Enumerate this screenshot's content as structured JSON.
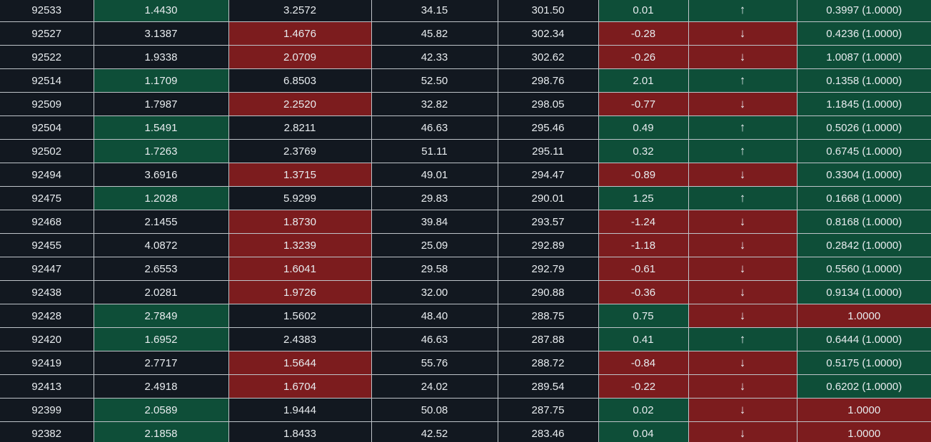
{
  "colors": {
    "background": "#121820",
    "positive": "#0e4e38",
    "negative": "#7c1c1e",
    "text": "#e8ecef",
    "grid": "#bfc4c9"
  },
  "rows": [
    {
      "id": "92533",
      "a": "1.4430",
      "a_hl": "g",
      "b": "3.2572",
      "b_hl": "",
      "c": "34.15",
      "d": "301.50",
      "e": "0.01",
      "e_hl": "g",
      "dir": "↑",
      "dir_name": "up-arrow-icon",
      "dir_hl": "g",
      "p": "0.3997 (1.0000)",
      "p_hl": "g"
    },
    {
      "id": "92527",
      "a": "3.1387",
      "a_hl": "",
      "b": "1.4676",
      "b_hl": "r",
      "c": "45.82",
      "d": "302.34",
      "e": "-0.28",
      "e_hl": "r",
      "dir": "↓",
      "dir_name": "down-arrow-icon",
      "dir_hl": "r",
      "p": "0.4236 (1.0000)",
      "p_hl": "g"
    },
    {
      "id": "92522",
      "a": "1.9338",
      "a_hl": "",
      "b": "2.0709",
      "b_hl": "r",
      "c": "42.33",
      "d": "302.62",
      "e": "-0.26",
      "e_hl": "r",
      "dir": "↓",
      "dir_name": "down-arrow-icon",
      "dir_hl": "r",
      "p": "1.0087 (1.0000)",
      "p_hl": "g"
    },
    {
      "id": "92514",
      "a": "1.1709",
      "a_hl": "g",
      "b": "6.8503",
      "b_hl": "",
      "c": "52.50",
      "d": "298.76",
      "e": "2.01",
      "e_hl": "g",
      "dir": "↑",
      "dir_name": "up-arrow-icon",
      "dir_hl": "g",
      "p": "0.1358 (1.0000)",
      "p_hl": "g"
    },
    {
      "id": "92509",
      "a": "1.7987",
      "a_hl": "",
      "b": "2.2520",
      "b_hl": "r",
      "c": "32.82",
      "d": "298.05",
      "e": "-0.77",
      "e_hl": "r",
      "dir": "↓",
      "dir_name": "down-arrow-icon",
      "dir_hl": "r",
      "p": "1.1845 (1.0000)",
      "p_hl": "g"
    },
    {
      "id": "92504",
      "a": "1.5491",
      "a_hl": "g",
      "b": "2.8211",
      "b_hl": "",
      "c": "46.63",
      "d": "295.46",
      "e": "0.49",
      "e_hl": "g",
      "dir": "↑",
      "dir_name": "up-arrow-icon",
      "dir_hl": "g",
      "p": "0.5026 (1.0000)",
      "p_hl": "g"
    },
    {
      "id": "92502",
      "a": "1.7263",
      "a_hl": "g",
      "b": "2.3769",
      "b_hl": "",
      "c": "51.11",
      "d": "295.11",
      "e": "0.32",
      "e_hl": "g",
      "dir": "↑",
      "dir_name": "up-arrow-icon",
      "dir_hl": "g",
      "p": "0.6745 (1.0000)",
      "p_hl": "g"
    },
    {
      "id": "92494",
      "a": "3.6916",
      "a_hl": "",
      "b": "1.3715",
      "b_hl": "r",
      "c": "49.01",
      "d": "294.47",
      "e": "-0.89",
      "e_hl": "r",
      "dir": "↓",
      "dir_name": "down-arrow-icon",
      "dir_hl": "r",
      "p": "0.3304 (1.0000)",
      "p_hl": "g"
    },
    {
      "id": "92475",
      "a": "1.2028",
      "a_hl": "g",
      "b": "5.9299",
      "b_hl": "",
      "c": "29.83",
      "d": "290.01",
      "e": "1.25",
      "e_hl": "g",
      "dir": "↑",
      "dir_name": "up-arrow-icon",
      "dir_hl": "g",
      "p": "0.1668 (1.0000)",
      "p_hl": "g"
    },
    {
      "id": "92468",
      "a": "2.1455",
      "a_hl": "",
      "b": "1.8730",
      "b_hl": "r",
      "c": "39.84",
      "d": "293.57",
      "e": "-1.24",
      "e_hl": "r",
      "dir": "↓",
      "dir_name": "down-arrow-icon",
      "dir_hl": "r",
      "p": "0.8168 (1.0000)",
      "p_hl": "g"
    },
    {
      "id": "92455",
      "a": "4.0872",
      "a_hl": "",
      "b": "1.3239",
      "b_hl": "r",
      "c": "25.09",
      "d": "292.89",
      "e": "-1.18",
      "e_hl": "r",
      "dir": "↓",
      "dir_name": "down-arrow-icon",
      "dir_hl": "r",
      "p": "0.2842 (1.0000)",
      "p_hl": "g"
    },
    {
      "id": "92447",
      "a": "2.6553",
      "a_hl": "",
      "b": "1.6041",
      "b_hl": "r",
      "c": "29.58",
      "d": "292.79",
      "e": "-0.61",
      "e_hl": "r",
      "dir": "↓",
      "dir_name": "down-arrow-icon",
      "dir_hl": "r",
      "p": "0.5560 (1.0000)",
      "p_hl": "g"
    },
    {
      "id": "92438",
      "a": "2.0281",
      "a_hl": "",
      "b": "1.9726",
      "b_hl": "r",
      "c": "32.00",
      "d": "290.88",
      "e": "-0.36",
      "e_hl": "r",
      "dir": "↓",
      "dir_name": "down-arrow-icon",
      "dir_hl": "r",
      "p": "0.9134 (1.0000)",
      "p_hl": "g"
    },
    {
      "id": "92428",
      "a": "2.7849",
      "a_hl": "g",
      "b": "1.5602",
      "b_hl": "",
      "c": "48.40",
      "d": "288.75",
      "e": "0.75",
      "e_hl": "g",
      "dir": "↓",
      "dir_name": "down-arrow-icon",
      "dir_hl": "r",
      "p": "1.0000",
      "p_hl": "r"
    },
    {
      "id": "92420",
      "a": "1.6952",
      "a_hl": "g",
      "b": "2.4383",
      "b_hl": "",
      "c": "46.63",
      "d": "287.88",
      "e": "0.41",
      "e_hl": "g",
      "dir": "↑",
      "dir_name": "up-arrow-icon",
      "dir_hl": "g",
      "p": "0.6444 (1.0000)",
      "p_hl": "g"
    },
    {
      "id": "92419",
      "a": "2.7717",
      "a_hl": "",
      "b": "1.5644",
      "b_hl": "r",
      "c": "55.76",
      "d": "288.72",
      "e": "-0.84",
      "e_hl": "r",
      "dir": "↓",
      "dir_name": "down-arrow-icon",
      "dir_hl": "r",
      "p": "0.5175 (1.0000)",
      "p_hl": "g"
    },
    {
      "id": "92413",
      "a": "2.4918",
      "a_hl": "",
      "b": "1.6704",
      "b_hl": "r",
      "c": "24.02",
      "d": "289.54",
      "e": "-0.22",
      "e_hl": "r",
      "dir": "↓",
      "dir_name": "down-arrow-icon",
      "dir_hl": "r",
      "p": "0.6202 (1.0000)",
      "p_hl": "g"
    },
    {
      "id": "92399",
      "a": "2.0589",
      "a_hl": "g",
      "b": "1.9444",
      "b_hl": "",
      "c": "50.08",
      "d": "287.75",
      "e": "0.02",
      "e_hl": "g",
      "dir": "↓",
      "dir_name": "down-arrow-icon",
      "dir_hl": "r",
      "p": "1.0000",
      "p_hl": "r"
    },
    {
      "id": "92382",
      "a": "2.1858",
      "a_hl": "g",
      "b": "1.8433",
      "b_hl": "",
      "c": "42.52",
      "d": "283.46",
      "e": "0.04",
      "e_hl": "g",
      "dir": "↓",
      "dir_name": "down-arrow-icon",
      "dir_hl": "r",
      "p": "1.0000",
      "p_hl": "r"
    }
  ]
}
